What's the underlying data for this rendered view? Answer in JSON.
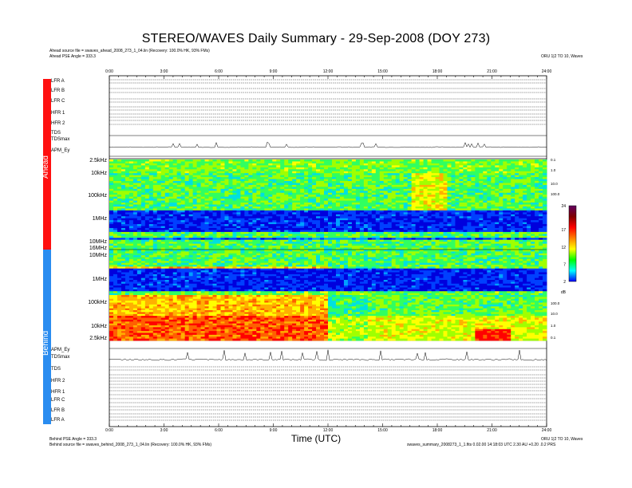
{
  "header": {
    "title": "STEREO/WAVES Daily Summary - 29-Sep-2008 (DOY 273)",
    "ahead_source": "Ahead source file = swaves_ahead_2008_273_1_04.lin (Recovery: 100.0% HK, 93% FMs)",
    "ahead_angle": "Ahead PSE Angle = 333.3",
    "top_right": "ORU 1|2 TO 10, Waves"
  },
  "footer": {
    "behind_angle": "Behind PSE Angle = 333.3",
    "behind_source": "Behind source file = swaves_behind_2008_273_1_04.lin (Recovery: 100.0% HK, 93% FMs)",
    "xlabel": "Time (UTC)",
    "bottom_right_1": "ORU 1|2 TO 10, Waves",
    "bottom_right_2": "swaves_summary_2008273_1_1.fits  0.02.00 14:18:03 UTC  2.30 AU  +0.20 .0.2 PRS"
  },
  "sections": {
    "ahead": "Ahead",
    "behind": "Behind"
  },
  "colorbar": {
    "ticks": [
      "24",
      "17",
      "12",
      "7",
      "2"
    ],
    "unit": "dB",
    "colors": [
      "#0000ff",
      "#00ffff",
      "#00ff00",
      "#ffff00",
      "#ff8000",
      "#ff0000",
      "#800000",
      "#600060"
    ]
  },
  "chart_data": {
    "type": "heatmap",
    "title": "STEREO/WAVES Daily Summary - 29-Sep-2008 (DOY 273)",
    "xlabel": "Time (UTC)",
    "x_ticks": [
      "0:00",
      "3:00",
      "6:00",
      "9:00",
      "12:00",
      "15:00",
      "18:00",
      "21:00",
      "24:00"
    ],
    "xlim": [
      0,
      24
    ],
    "ahead_rows": [
      "LFR A",
      "LFR B",
      "LFR C",
      "HFR 1",
      "HFR 2",
      "TDS",
      "TDSmax",
      "APM_Ey"
    ],
    "behind_rows": [
      "APM_Ey",
      "TDSmax",
      "TDS",
      "HFR 2",
      "HFR 1",
      "LFR C",
      "LFR B",
      "LFR A"
    ],
    "ahead_freq_ticks": [
      "2.5kHz",
      "10kHz",
      "100kHz",
      "1MHz",
      "10MHz"
    ],
    "behind_freq_ticks": [
      "16MHz",
      "10MHz",
      "1MHz",
      "100kHz",
      "10kHz",
      "2.5kHz"
    ],
    "right_freq_ticks_ahead": [
      "0.1",
      "1.0",
      "10.0",
      "100.0"
    ],
    "right_freq_ticks_behind": [
      "100.0",
      "10.0",
      "1.0",
      "0.1"
    ],
    "colorbar_range": [
      2,
      24
    ],
    "colorbar_unit": "dB"
  }
}
